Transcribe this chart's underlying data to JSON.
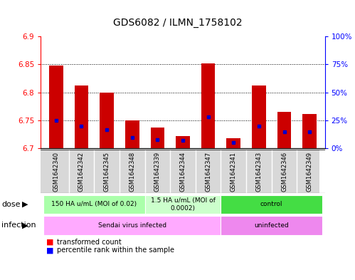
{
  "title": "GDS6082 / ILMN_1758102",
  "samples": [
    "GSM1642340",
    "GSM1642342",
    "GSM1642345",
    "GSM1642348",
    "GSM1642339",
    "GSM1642344",
    "GSM1642347",
    "GSM1642341",
    "GSM1642343",
    "GSM1642346",
    "GSM1642349"
  ],
  "transformed_counts": [
    6.848,
    6.812,
    6.8,
    6.75,
    6.737,
    6.722,
    6.852,
    6.718,
    6.812,
    6.765,
    6.762
  ],
  "percentile_ranks": [
    25,
    20,
    17,
    10,
    8,
    7,
    28,
    5,
    20,
    15,
    15
  ],
  "y_min": 6.7,
  "y_max": 6.9,
  "y_ticks": [
    6.7,
    6.75,
    6.8,
    6.85,
    6.9
  ],
  "right_y_ticks": [
    0,
    25,
    50,
    75,
    100
  ],
  "right_y_tick_labels": [
    "0%",
    "25%",
    "50%",
    "75%",
    "100%"
  ],
  "bar_color": "#cc0000",
  "percentile_color": "#0000cc",
  "dose_groups": [
    {
      "label": "150 HA u/mL (MOI of 0.02)",
      "start": 0,
      "end": 4,
      "color": "#aaffaa"
    },
    {
      "label": "1.5 HA u/mL (MOI of\n0.0002)",
      "start": 4,
      "end": 7,
      "color": "#ccffcc"
    },
    {
      "label": "control",
      "start": 7,
      "end": 11,
      "color": "#44dd44"
    }
  ],
  "infection_groups": [
    {
      "label": "Sendai virus infected",
      "start": 0,
      "end": 7,
      "color": "#ffaaff"
    },
    {
      "label": "uninfected",
      "start": 7,
      "end": 11,
      "color": "#ee88ee"
    }
  ],
  "legend_items": [
    {
      "label": "transformed count",
      "color": "#cc0000"
    },
    {
      "label": "percentile rank within the sample",
      "color": "#0000cc"
    }
  ],
  "sample_bg_color": "#d8d8d8"
}
